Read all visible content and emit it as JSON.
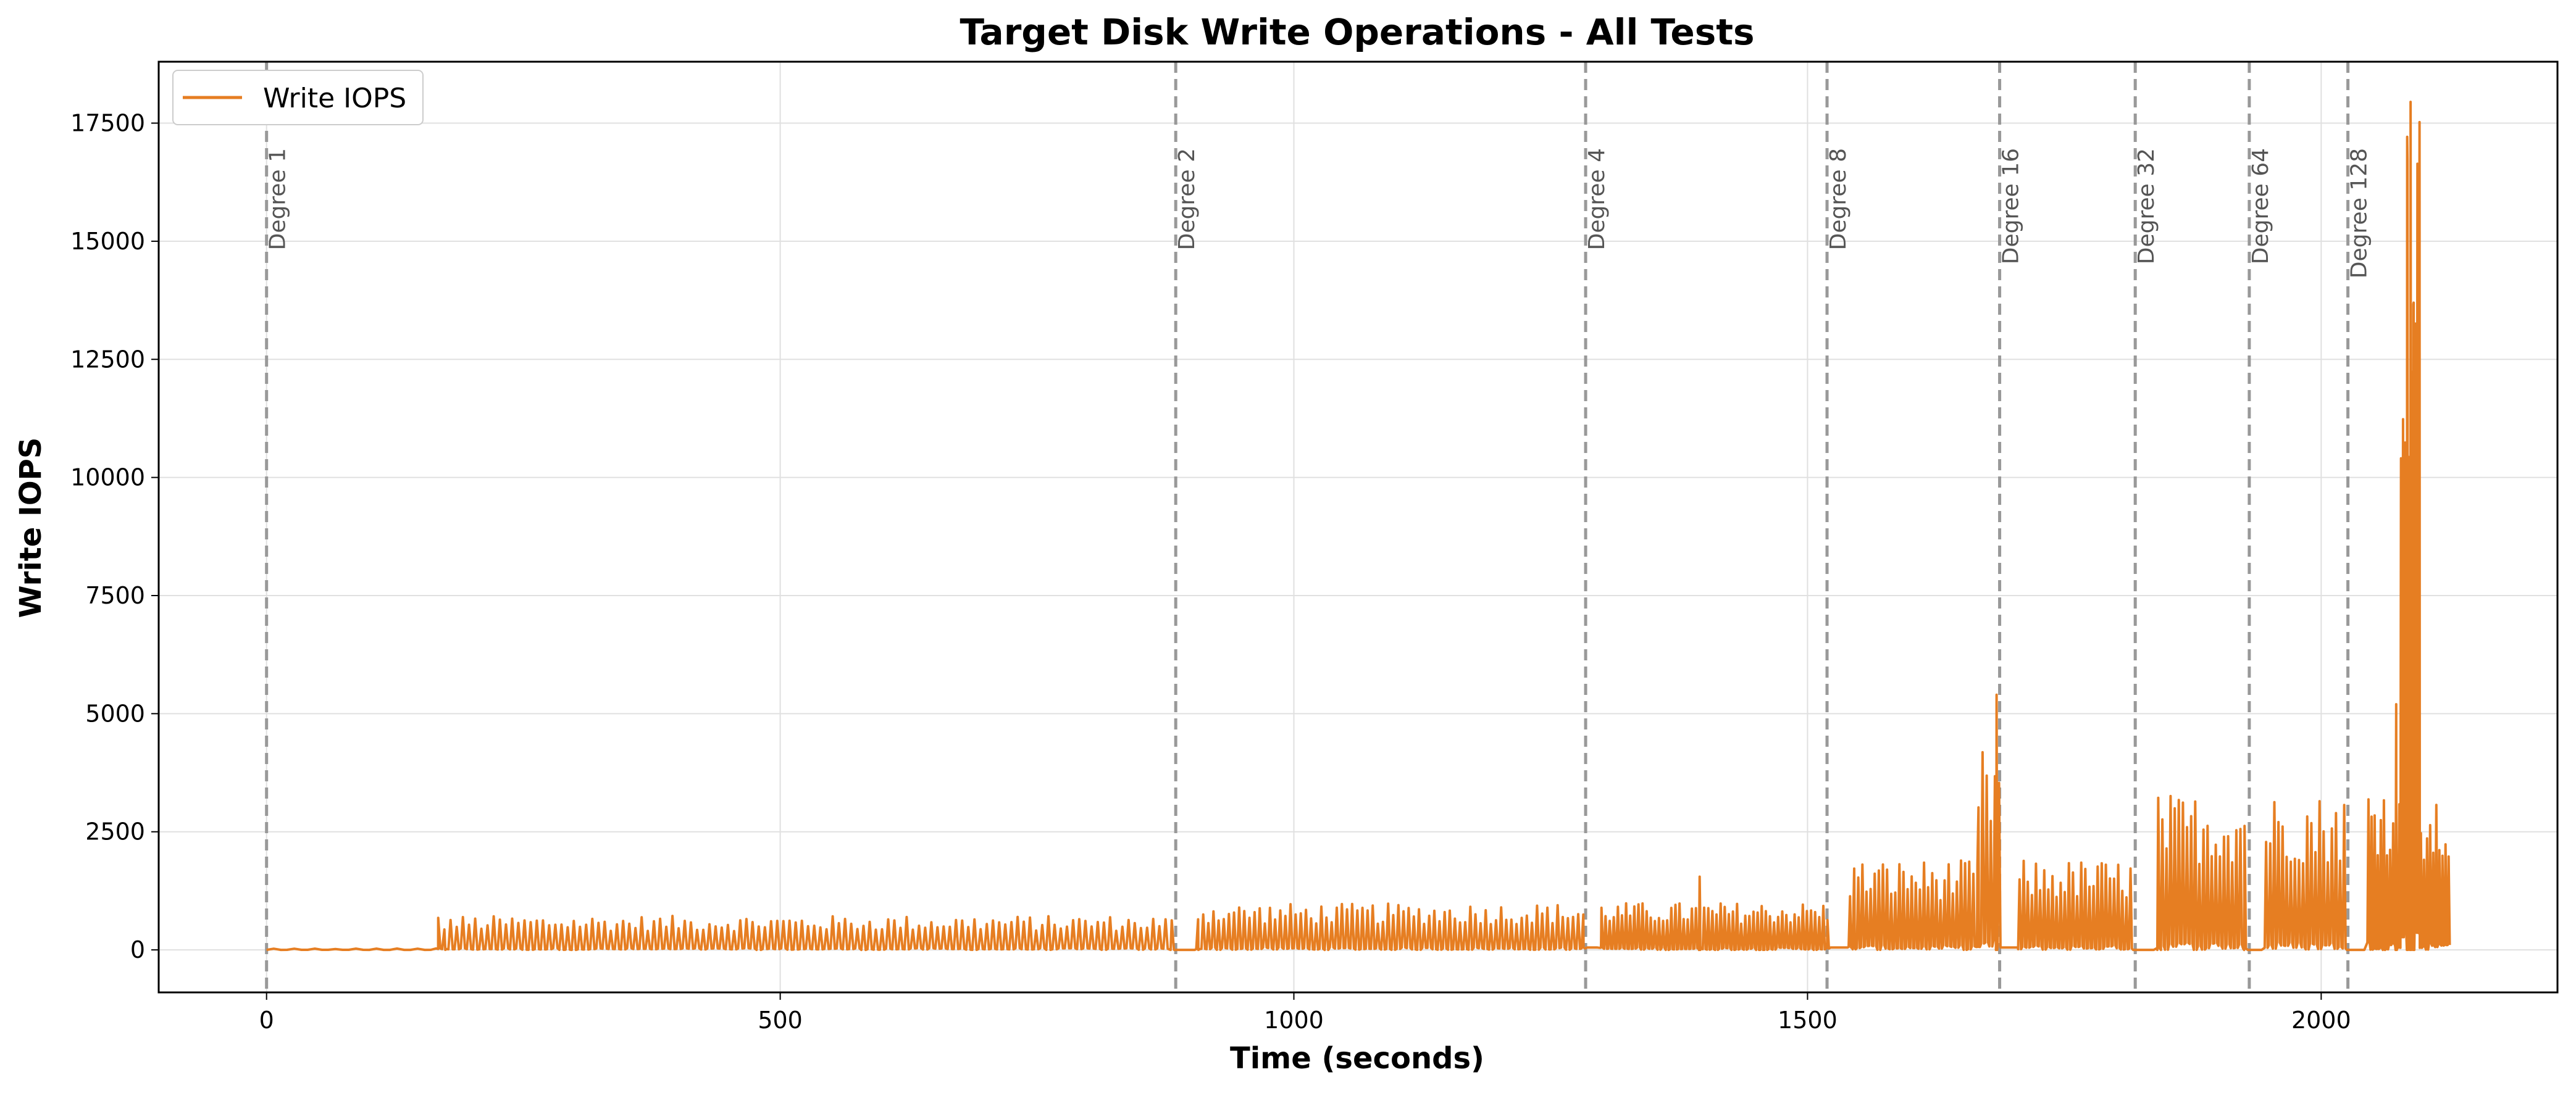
{
  "chart_data": {
    "type": "line",
    "title": "Target Disk Write Operations - All Tests",
    "xlabel": "Time (seconds)",
    "ylabel": "Write IOPS",
    "xlim": [
      -105,
      2230
    ],
    "ylim": [
      -900,
      18800
    ],
    "xticks": [
      0,
      500,
      1000,
      1500,
      2000
    ],
    "yticks": [
      0,
      2500,
      5000,
      7500,
      10000,
      12500,
      15000,
      17500
    ],
    "grid": true,
    "legend": {
      "position": "top-left",
      "entries": [
        "Write IOPS"
      ]
    },
    "colors": {
      "series": "#e67e22",
      "marker": "#999999",
      "grid": "#e0e0e0"
    },
    "markers": [
      {
        "x": 0,
        "label": "Degree 1"
      },
      {
        "x": 885,
        "label": "Degree 2"
      },
      {
        "x": 1284,
        "label": "Degree 4"
      },
      {
        "x": 1519,
        "label": "Degree 8"
      },
      {
        "x": 1687,
        "label": "Degree 16"
      },
      {
        "x": 1819,
        "label": "Degree 32"
      },
      {
        "x": 1930,
        "label": "Degree 64"
      },
      {
        "x": 2026,
        "label": "Degree 128"
      }
    ],
    "series": [
      {
        "name": "Write IOPS",
        "segments": [
          {
            "start": 0,
            "end": 165,
            "period": 20,
            "min": 0,
            "max": 30
          },
          {
            "start": 165,
            "end": 880,
            "period": 6,
            "min": 0,
            "max": 720
          },
          {
            "start": 880,
            "end": 905,
            "period": 10,
            "min": 0,
            "max": 0
          },
          {
            "start": 905,
            "end": 1282,
            "period": 5,
            "min": 0,
            "max": 980
          },
          {
            "start": 1282,
            "end": 1298,
            "period": 10,
            "min": 50,
            "max": 50
          },
          {
            "start": 1298,
            "end": 1519,
            "period": 4,
            "min": 0,
            "max": 1000
          },
          {
            "start": 1519,
            "end": 1540,
            "period": 10,
            "min": 50,
            "max": 50
          },
          {
            "start": 1540,
            "end": 1665,
            "period": 4,
            "min": 0,
            "max": 1900
          },
          {
            "start": 1665,
            "end": 1688,
            "period": 4,
            "min": 0,
            "max": 4250
          },
          {
            "start": 1688,
            "end": 1705,
            "period": 10,
            "min": 50,
            "max": 50
          },
          {
            "start": 1705,
            "end": 1817,
            "period": 4,
            "min": 0,
            "max": 1900
          },
          {
            "start": 1817,
            "end": 1840,
            "period": 10,
            "min": 0,
            "max": 0
          },
          {
            "start": 1840,
            "end": 1925,
            "period": 4,
            "min": 0,
            "max": 3300
          },
          {
            "start": 1925,
            "end": 1945,
            "period": 10,
            "min": 0,
            "max": 0
          },
          {
            "start": 1945,
            "end": 2025,
            "period": 4,
            "min": 0,
            "max": 3300
          },
          {
            "start": 2025,
            "end": 2045,
            "period": 10,
            "min": 0,
            "max": 0
          },
          {
            "start": 2045,
            "end": 2077,
            "period": 3,
            "min": 0,
            "max": 3600
          },
          {
            "start": 2077,
            "end": 2096,
            "period": 2,
            "min": 0,
            "max": 17900
          },
          {
            "start": 2096,
            "end": 2125,
            "period": 3,
            "min": 0,
            "max": 3100
          }
        ],
        "spikes": [
          {
            "x": 1395,
            "y": 1550
          },
          {
            "x": 1684,
            "y": 5400
          },
          {
            "x": 2087,
            "y": 17950
          },
          {
            "x": 2084,
            "y": 16700
          },
          {
            "x": 2090,
            "y": 13700
          },
          {
            "x": 2073,
            "y": 5200
          }
        ]
      }
    ]
  }
}
